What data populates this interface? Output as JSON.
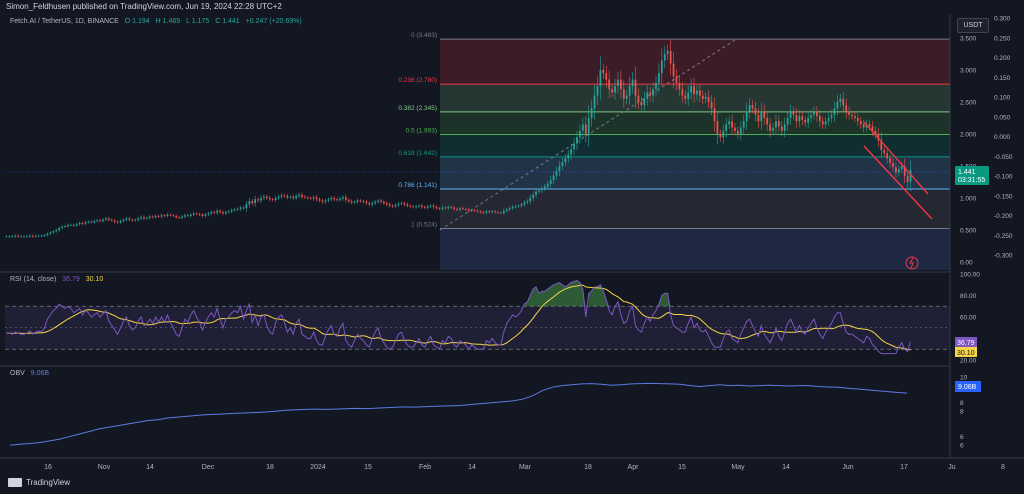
{
  "header": {
    "published": "Simon_Feldhusen published on TradingView.com, Jun 19, 2024 22:28 UTC+2"
  },
  "legend": {
    "symbol": "Fetch.AI / TetherUS, 1D, BINANCE",
    "o": "O 1.194",
    "h": "H 1.469",
    "l": "L 1.175",
    "c": "C 1.441",
    "change": "+0.247 (+20.69%)"
  },
  "currency_button": "USDT",
  "footer": {
    "brand": "TradingView"
  },
  "colors": {
    "up": "#26a69a",
    "down": "#ef5350",
    "rsi": "#7e57c2",
    "rsi_ma": "#f5d547",
    "obv": "#5b7be0",
    "channel": "#f23645",
    "background": "#131722"
  },
  "chart_data": [
    {
      "type": "candlestick",
      "name": "price",
      "ylim": [
        0,
        3.5
      ],
      "y_ticks": [
        "0.00",
        "0.500",
        "1.000",
        "1.500",
        "2.000",
        "2.500",
        "3.000",
        "3.500"
      ],
      "y2_ticks": [
        "0.300",
        "0.250",
        "0.200",
        "0.150",
        "0.100",
        "0.050",
        "0.000",
        "-0.050",
        "-0.100",
        "-0.150",
        "-0.200",
        "-0.250",
        "-0.300"
      ],
      "x_labels": [
        "16",
        "Nov",
        "14",
        "Dec",
        "18",
        "2024",
        "15",
        "Feb",
        "14",
        "Mar",
        "18",
        "Apr",
        "15",
        "May",
        "14",
        "Jun",
        "17",
        "Ju",
        "8"
      ],
      "fib_levels": [
        {
          "ratio": "0",
          "value": 3.483,
          "label": "0 (3.483)",
          "color": "#787b86"
        },
        {
          "ratio": "0.236",
          "value": 2.78,
          "label": "0.236 (2.780)",
          "color": "#f23645"
        },
        {
          "ratio": "0.382",
          "value": 2.345,
          "label": "0.382 (2.345)",
          "color": "#81c784"
        },
        {
          "ratio": "0.5",
          "value": 1.993,
          "label": "0.5 (1.993)",
          "color": "#4caf50"
        },
        {
          "ratio": "0.618",
          "value": 1.642,
          "label": "0.618 (1.642)",
          "color": "#089981"
        },
        {
          "ratio": "0.786",
          "value": 1.141,
          "label": "0.786 (1.141)",
          "color": "#64b5f6"
        },
        {
          "ratio": "1",
          "value": 0.524,
          "label": "1 (0.524)",
          "color": "#787b86"
        }
      ],
      "last_price": "1.441",
      "countdown": "03:31:55",
      "closes": [
        0.4,
        0.4,
        0.4,
        0.41,
        0.4,
        0.4,
        0.4,
        0.4,
        0.41,
        0.4,
        0.41,
        0.41,
        0.41,
        0.42,
        0.44,
        0.46,
        0.48,
        0.5,
        0.53,
        0.55,
        0.56,
        0.58,
        0.58,
        0.57,
        0.59,
        0.61,
        0.6,
        0.62,
        0.63,
        0.62,
        0.64,
        0.65,
        0.64,
        0.66,
        0.68,
        0.66,
        0.65,
        0.63,
        0.62,
        0.64,
        0.66,
        0.68,
        0.66,
        0.65,
        0.66,
        0.68,
        0.7,
        0.68,
        0.69,
        0.71,
        0.7,
        0.72,
        0.71,
        0.73,
        0.72,
        0.74,
        0.73,
        0.72,
        0.7,
        0.69,
        0.71,
        0.73,
        0.72,
        0.74,
        0.76,
        0.75,
        0.74,
        0.72,
        0.74,
        0.76,
        0.78,
        0.77,
        0.8,
        0.78,
        0.76,
        0.78,
        0.79,
        0.81,
        0.82,
        0.83,
        0.85,
        0.84,
        0.9,
        0.95,
        0.92,
        0.98,
        0.96,
        1.0,
        1.02,
        1.0,
        0.98,
        0.97,
        1.0,
        1.02,
        1.04,
        1.03,
        1.01,
        1.02,
        1.0,
        1.03,
        1.05,
        1.02,
        1.01,
        1.0,
        0.99,
        1.01,
        0.98,
        0.96,
        0.94,
        0.96,
        0.98,
        1.0,
        0.98,
        0.97,
        0.99,
        1.01,
        0.97,
        0.95,
        0.93,
        0.94,
        0.96,
        0.95,
        0.94,
        0.92,
        0.9,
        0.92,
        0.94,
        0.96,
        0.94,
        0.92,
        0.9,
        0.88,
        0.87,
        0.89,
        0.91,
        0.92,
        0.9,
        0.88,
        0.87,
        0.86,
        0.87,
        0.88,
        0.86,
        0.85,
        0.87,
        0.88,
        0.86,
        0.84,
        0.83,
        0.85,
        0.84,
        0.86,
        0.85,
        0.83,
        0.82,
        0.84,
        0.83,
        0.82,
        0.8,
        0.81,
        0.8,
        0.79,
        0.78,
        0.77,
        0.79,
        0.78,
        0.79,
        0.78,
        0.77,
        0.77,
        0.8,
        0.82,
        0.84,
        0.86,
        0.87,
        0.88,
        0.9,
        0.93,
        0.95,
        1.0,
        1.05,
        1.1,
        1.12,
        1.15,
        1.18,
        1.22,
        1.28,
        1.35,
        1.42,
        1.5,
        1.56,
        1.62,
        1.68,
        1.76,
        1.85,
        1.95,
        2.05,
        2.15,
        2.0,
        2.25,
        2.4,
        2.6,
        2.75,
        3.0,
        2.95,
        2.85,
        2.7,
        2.65,
        2.75,
        2.85,
        2.7,
        2.55,
        2.6,
        2.75,
        2.85,
        2.6,
        2.5,
        2.45,
        2.55,
        2.65,
        2.6,
        2.7,
        2.8,
        2.95,
        3.15,
        3.25,
        3.3,
        3.1,
        2.9,
        2.8,
        2.7,
        2.6,
        2.55,
        2.65,
        2.75,
        2.62,
        2.68,
        2.6,
        2.55,
        2.58,
        2.5,
        2.4,
        2.2,
        2.0,
        1.95,
        2.05,
        2.15,
        2.2,
        2.1,
        2.05,
        2.0,
        2.1,
        2.2,
        2.35,
        2.45,
        2.4,
        2.3,
        2.2,
        2.35,
        2.25,
        2.15,
        2.05,
        2.1,
        2.2,
        2.12,
        2.05,
        2.15,
        2.25,
        2.35,
        2.3,
        2.2,
        2.28,
        2.22,
        2.18,
        2.25,
        2.3,
        2.35,
        2.28,
        2.2,
        2.15,
        2.2,
        2.25,
        2.3,
        2.4,
        2.5,
        2.55,
        2.45,
        2.35,
        2.3,
        2.28,
        2.25,
        2.2,
        2.15,
        2.1,
        2.15,
        2.12,
        2.05,
        2.0,
        1.9,
        1.75,
        1.7,
        1.62,
        1.55,
        1.48,
        1.4,
        1.45,
        1.5,
        1.35,
        1.25,
        1.441
      ]
    },
    {
      "type": "line",
      "name": "RSI",
      "legend": "RSI (14, close)",
      "value": "36.79",
      "ma_value": "30.10",
      "ylim": [
        20,
        100
      ],
      "y_ticks": [
        "100.00",
        "80.00",
        "60.00",
        "40.00",
        "20.00"
      ],
      "bands": [
        30,
        70
      ],
      "values": [
        45,
        45,
        44,
        46,
        45,
        44,
        44,
        45,
        47,
        44,
        46,
        47,
        46,
        50,
        58,
        62,
        66,
        68,
        72,
        70,
        68,
        70,
        68,
        64,
        66,
        68,
        62,
        66,
        64,
        60,
        62,
        64,
        60,
        63,
        66,
        56,
        52,
        48,
        44,
        50,
        56,
        60,
        52,
        48,
        50,
        56,
        60,
        52,
        54,
        58,
        54,
        60,
        55,
        60,
        55,
        62,
        55,
        50,
        44,
        42,
        50,
        58,
        55,
        62,
        66,
        60,
        55,
        48,
        55,
        60,
        64,
        60,
        68,
        58,
        50,
        58,
        60,
        64,
        66,
        64,
        70,
        58,
        66,
        72,
        55,
        62,
        52,
        60,
        62,
        52,
        46,
        44,
        55,
        60,
        62,
        55,
        46,
        50,
        44,
        54,
        58,
        44,
        42,
        40,
        40,
        46,
        38,
        34,
        34,
        42,
        48,
        52,
        44,
        42,
        50,
        54,
        38,
        34,
        32,
        38,
        44,
        40,
        38,
        34,
        32,
        40,
        46,
        50,
        40,
        36,
        32,
        30,
        32,
        38,
        44,
        46,
        38,
        34,
        32,
        32,
        36,
        40,
        34,
        32,
        38,
        42,
        34,
        32,
        30,
        38,
        36,
        42,
        40,
        34,
        32,
        38,
        36,
        34,
        30,
        34,
        32,
        30,
        30,
        30,
        38,
        36,
        40,
        36,
        34,
        34,
        46,
        54,
        58,
        62,
        60,
        62,
        66,
        72,
        74,
        80,
        86,
        88,
        82,
        84,
        84,
        86,
        88,
        90,
        91,
        92,
        90,
        88,
        90,
        92,
        93,
        94,
        92,
        86,
        60,
        82,
        84,
        88,
        88,
        90,
        84,
        76,
        66,
        62,
        70,
        74,
        62,
        54,
        56,
        66,
        70,
        52,
        48,
        46,
        54,
        60,
        56,
        62,
        66,
        72,
        80,
        82,
        82,
        62,
        52,
        50,
        48,
        46,
        46,
        54,
        60,
        50,
        54,
        48,
        46,
        48,
        42,
        36,
        32,
        32,
        32,
        40,
        46,
        48,
        40,
        38,
        36,
        44,
        50,
        56,
        58,
        52,
        46,
        42,
        52,
        44,
        40,
        36,
        42,
        50,
        42,
        38,
        46,
        54,
        58,
        52,
        46,
        52,
        46,
        44,
        50,
        54,
        58,
        50,
        44,
        40,
        46,
        50,
        54,
        60,
        64,
        64,
        54,
        46,
        44,
        44,
        42,
        40,
        38,
        36,
        42,
        40,
        34,
        32,
        28,
        26,
        26,
        26,
        26,
        26,
        26,
        32,
        36,
        30,
        28,
        37
      ]
    },
    {
      "type": "line",
      "name": "OBV",
      "legend": "OBV",
      "value": "9.06B",
      "ylim": [
        5.6,
        10.3
      ],
      "y_ticks": [
        "10",
        "8",
        "8",
        "6",
        "6"
      ],
      "values": [
        6.0,
        6.05,
        6.1,
        6.15,
        6.25,
        6.35,
        6.5,
        6.65,
        6.8,
        6.95,
        7.05,
        7.15,
        7.25,
        7.35,
        7.45,
        7.5,
        7.6,
        7.65,
        7.7,
        7.75,
        7.8,
        7.82,
        7.85,
        7.88,
        7.9,
        7.92,
        7.95,
        8.0,
        8.05,
        8.08,
        8.1,
        8.12,
        8.1,
        8.12,
        8.14,
        8.16,
        8.15,
        8.17,
        8.2,
        8.22,
        8.25,
        8.24,
        8.26,
        8.28,
        8.3,
        8.32,
        8.35,
        8.4,
        8.45,
        8.5,
        8.55,
        8.6,
        8.7,
        8.9,
        9.2,
        9.4,
        9.5,
        9.55,
        9.6,
        9.62,
        9.58,
        9.52,
        9.55,
        9.6,
        9.62,
        9.63,
        9.62,
        9.6,
        9.58,
        9.5,
        9.45,
        9.5,
        9.55,
        9.5,
        9.52,
        9.48,
        9.5,
        9.52,
        9.5,
        9.48,
        9.5,
        9.5,
        9.45,
        9.42,
        9.4,
        9.35,
        9.3,
        9.25,
        9.2,
        9.15,
        9.1,
        9.06
      ]
    }
  ]
}
